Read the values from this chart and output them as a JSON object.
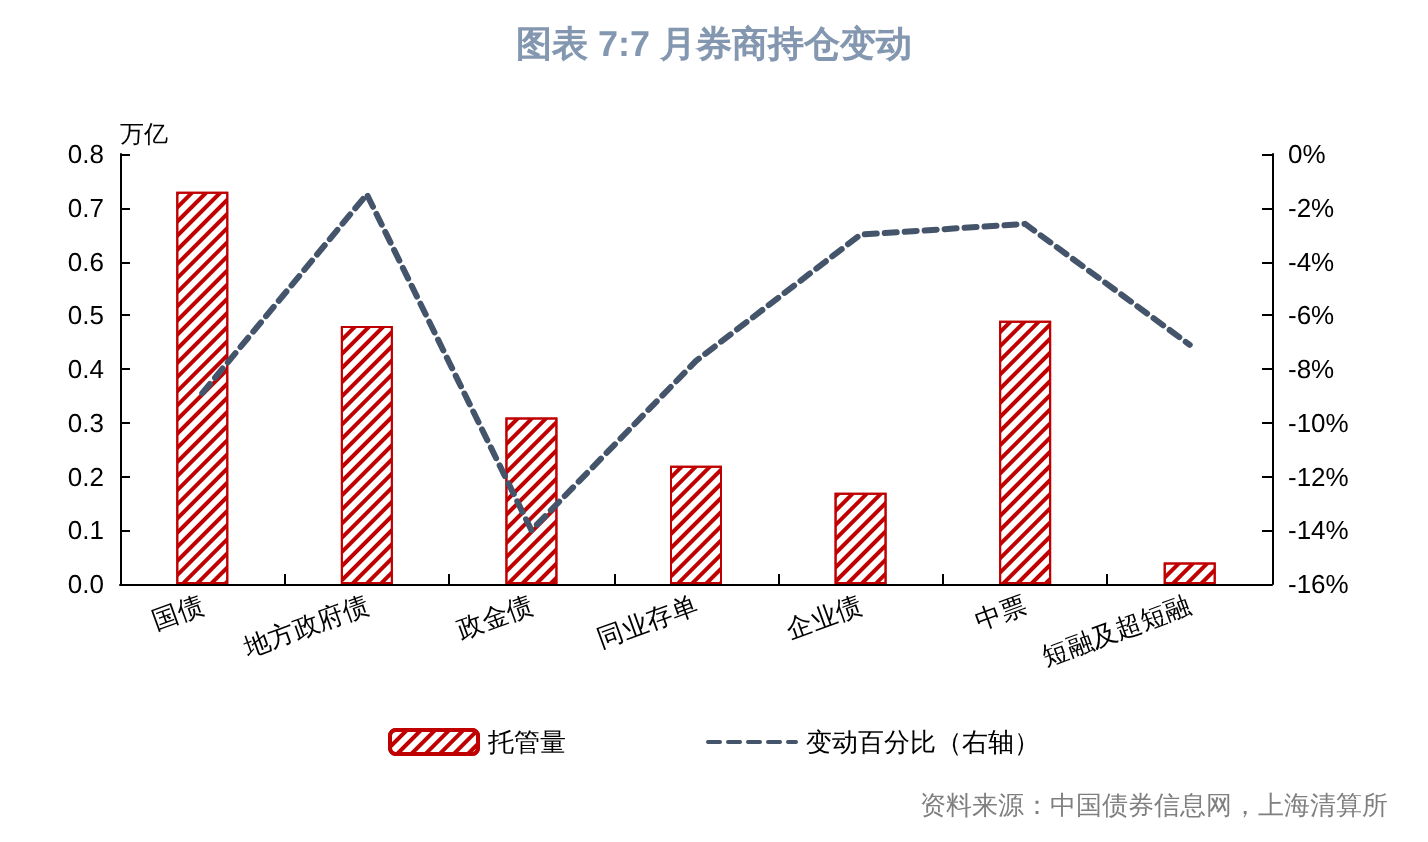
{
  "chart_data": {
    "type": "bar",
    "title": "图表 7:7 月券商持仓变动",
    "ylabel": "万亿",
    "categories": [
      "国债",
      "地方政府债",
      "政金债",
      "同业存单",
      "企业债",
      "中票",
      "短融及超短融"
    ],
    "series": [
      {
        "name": "托管量",
        "color": "#c00000",
        "values": [
          0.73,
          0.48,
          0.31,
          0.22,
          0.17,
          0.49,
          0.04
        ]
      },
      {
        "name": "变动百分比（右轴）",
        "type": "line",
        "axis": "y2",
        "color": "#44546a",
        "line_style": "dashed",
        "marker": "none",
        "values": [
          -8.9,
          -1.5,
          -14.0,
          -7.7,
          -3.0,
          -2.6,
          -7.1
        ]
      }
    ],
    "ylim": [
      0,
      0.8
    ],
    "yticks": [
      {
        "value": 0,
        "label": "0.0"
      },
      {
        "value": 0.1,
        "label": "0.1"
      },
      {
        "value": 0.2,
        "label": "0.2"
      },
      {
        "value": 0.3,
        "label": "0.3"
      },
      {
        "value": 0.4,
        "label": "0.4"
      },
      {
        "value": 0.5,
        "label": "0.5"
      },
      {
        "value": 0.6,
        "label": "0.6"
      },
      {
        "value": 0.7,
        "label": "0.7"
      },
      {
        "value": 0.8,
        "label": "0.8"
      }
    ],
    "y2lim": [
      -16,
      0
    ],
    "y2ticks": [
      {
        "value": -16,
        "label": "-16%"
      },
      {
        "value": -14,
        "label": "-14%"
      },
      {
        "value": -12,
        "label": "-12%"
      },
      {
        "value": -10,
        "label": "-10%"
      },
      {
        "value": -8,
        "label": "-8%"
      },
      {
        "value": -6,
        "label": "-6%"
      },
      {
        "value": -4,
        "label": "-4%"
      },
      {
        "value": -2,
        "label": "-2%"
      },
      {
        "value": 0,
        "label": "0%"
      }
    ],
    "grid": false,
    "legend": "bottom",
    "annotations": [
      "资料来源：中国债券信息网，上海清算所"
    ]
  }
}
